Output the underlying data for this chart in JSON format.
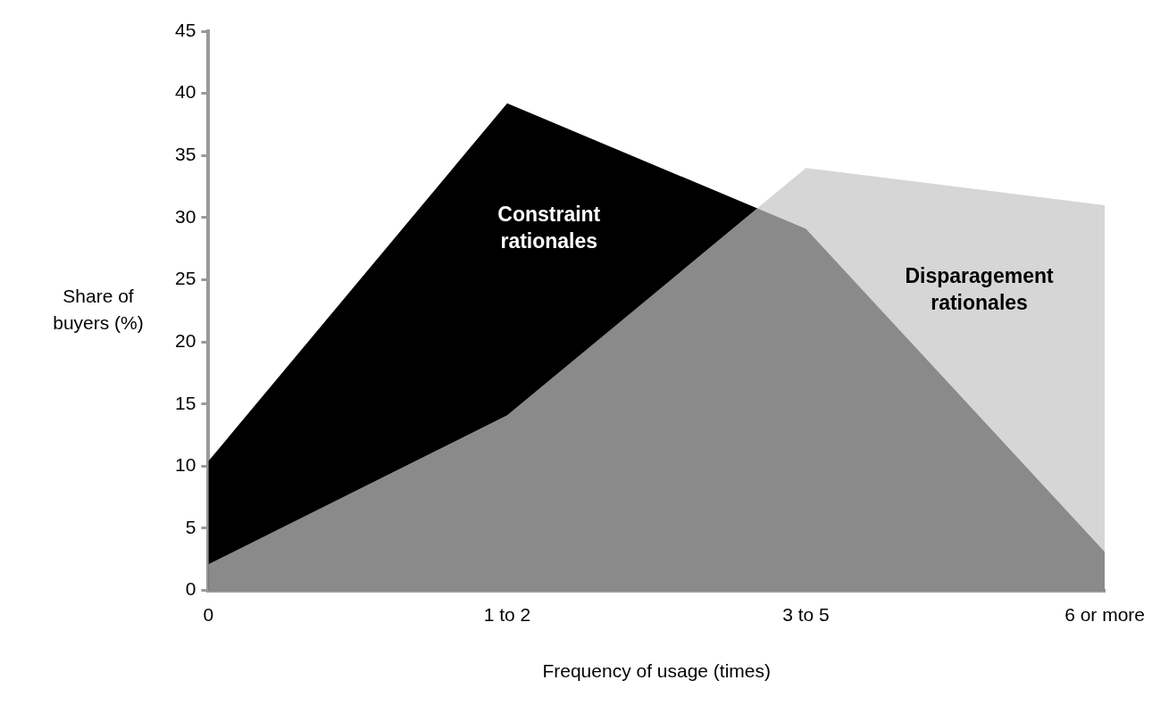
{
  "chart_data": {
    "type": "area",
    "xlabel": "Frequency of usage (times)",
    "ylabel": "Share of buyers (%)",
    "categories": [
      "0",
      "1 to 2",
      "3 to 5",
      "6 or more"
    ],
    "series": [
      {
        "name": "Constraint rationales",
        "color": "#000000",
        "values": [
          10.4,
          39.2,
          29.1,
          3.1
        ]
      },
      {
        "name": "Disparagement rationales",
        "color": "#c4c4c4",
        "values": [
          2.1,
          14.1,
          34.0,
          31.0
        ]
      }
    ],
    "ylim": [
      0,
      45
    ],
    "yticks": [
      0,
      5,
      10,
      15,
      20,
      25,
      30,
      35,
      40,
      45
    ],
    "grid": false,
    "legend": false
  }
}
